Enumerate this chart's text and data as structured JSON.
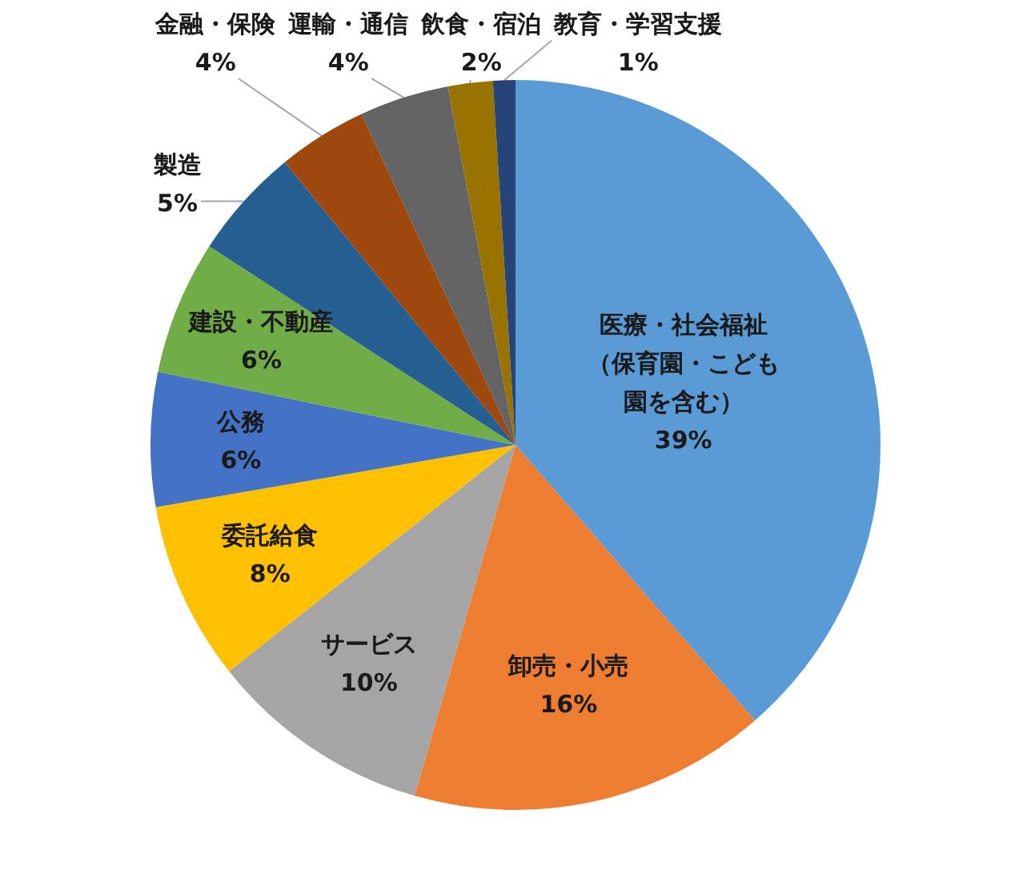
{
  "chart_data": {
    "type": "pie",
    "categories": [
      "医療・社会福祉（保育園・こども園を含む）",
      "卸売・小売",
      "サービス",
      "委託給食",
      "公務",
      "建設・不動産",
      "製造",
      "金融・保険",
      "運輸・通信",
      "飲食・宿泊",
      "教育・学習支援"
    ],
    "values": [
      39,
      16,
      10,
      8,
      6,
      6,
      5,
      4,
      4,
      2,
      1
    ],
    "value_labels": [
      "39%",
      "16%",
      "10%",
      "8%",
      "6%",
      "6%",
      "5%",
      "4%",
      "4%",
      "2%",
      "1%"
    ],
    "colors": [
      "#5b9bd5",
      "#ed7d31",
      "#a5a5a5",
      "#ffc000",
      "#4472c4",
      "#70ad47",
      "#255e91",
      "#9e480e",
      "#636363",
      "#997300",
      "#264478"
    ]
  }
}
